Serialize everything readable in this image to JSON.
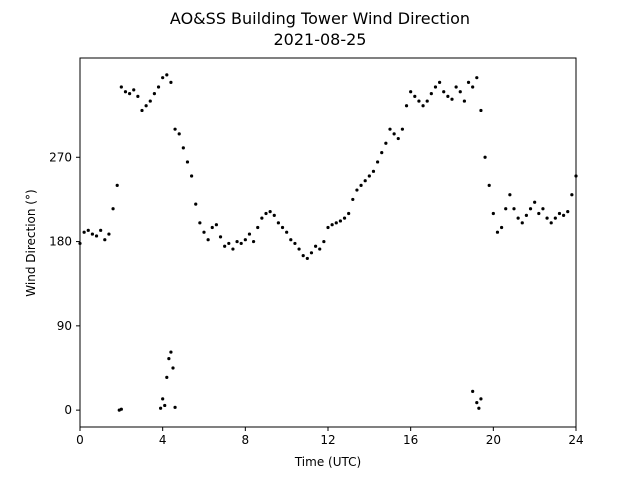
{
  "chart_data": {
    "type": "scatter",
    "title": "AO&SS Building Tower Wind Direction",
    "subtitle": "2021-08-25",
    "x_label": "Time (UTC)",
    "y_label": "Wind Direction (°)",
    "color": "#000000",
    "xlim": [
      0,
      24
    ],
    "xticks": [
      0,
      4,
      8,
      12,
      16,
      20,
      24
    ],
    "ylim": [
      -18,
      376
    ],
    "yticks": [
      0,
      90,
      180,
      270
    ],
    "x": [
      0,
      0.2,
      0.4,
      0.6,
      0.8,
      1,
      1.2,
      1.4,
      1.6,
      1.8,
      2,
      2.2,
      2.4,
      2.6,
      2.8,
      3,
      3.2,
      3.4,
      3.6,
      3.8,
      4,
      4.2,
      4.4,
      4.6,
      4.8,
      5,
      5.2,
      5.4,
      5.6,
      5.8,
      6,
      6.2,
      6.4,
      6.6,
      6.8,
      7,
      7.2,
      7.4,
      7.6,
      7.8,
      8,
      8.2,
      8.4,
      8.6,
      8.8,
      9,
      9.2,
      9.4,
      9.6,
      9.8,
      10,
      10.2,
      10.4,
      10.6,
      10.8,
      11,
      11.2,
      11.4,
      11.6,
      11.8,
      12,
      12.2,
      12.4,
      12.6,
      12.8,
      13,
      13.2,
      13.4,
      13.6,
      13.8,
      14,
      14.2,
      14.4,
      14.6,
      14.8,
      15,
      15.2,
      15.4,
      15.6,
      15.8,
      16,
      16.2,
      16.4,
      16.6,
      16.8,
      17,
      17.2,
      17.4,
      17.6,
      17.8,
      18,
      18.2,
      18.4,
      18.6,
      18.8,
      19,
      19.2,
      19.4,
      19.6,
      19.8,
      20,
      20.2,
      20.4,
      20.6,
      20.8,
      21,
      21.2,
      21.4,
      21.6,
      21.8,
      22,
      22.2,
      22.4,
      22.6,
      22.8,
      23,
      23.2,
      23.4,
      23.6,
      23.8,
      24,
      2,
      1.9,
      3.9,
      4,
      4.1,
      4.2,
      4.3,
      4.4,
      4.5,
      4.6,
      19,
      19.2,
      19.3,
      19.4
    ],
    "values": [
      178,
      190,
      192,
      188,
      186,
      192,
      182,
      188,
      215,
      240,
      345,
      340,
      338,
      342,
      335,
      320,
      325,
      330,
      338,
      345,
      355,
      358,
      350,
      300,
      295,
      280,
      265,
      250,
      220,
      200,
      190,
      182,
      195,
      198,
      185,
      175,
      178,
      172,
      180,
      178,
      182,
      188,
      180,
      195,
      205,
      210,
      212,
      208,
      200,
      195,
      190,
      182,
      178,
      172,
      165,
      162,
      168,
      175,
      172,
      180,
      195,
      198,
      200,
      202,
      205,
      210,
      225,
      235,
      240,
      245,
      250,
      255,
      265,
      275,
      285,
      300,
      295,
      290,
      300,
      325,
      340,
      335,
      330,
      325,
      330,
      338,
      345,
      350,
      340,
      335,
      332,
      345,
      340,
      330,
      350,
      345,
      355,
      320,
      270,
      240,
      210,
      190,
      195,
      215,
      230,
      215,
      205,
      200,
      208,
      215,
      222,
      210,
      215,
      205,
      200,
      205,
      210,
      208,
      212,
      230,
      250,
      1,
      0,
      2,
      12,
      5,
      35,
      55,
      62,
      45,
      3,
      20,
      8,
      2,
      12
    ]
  }
}
